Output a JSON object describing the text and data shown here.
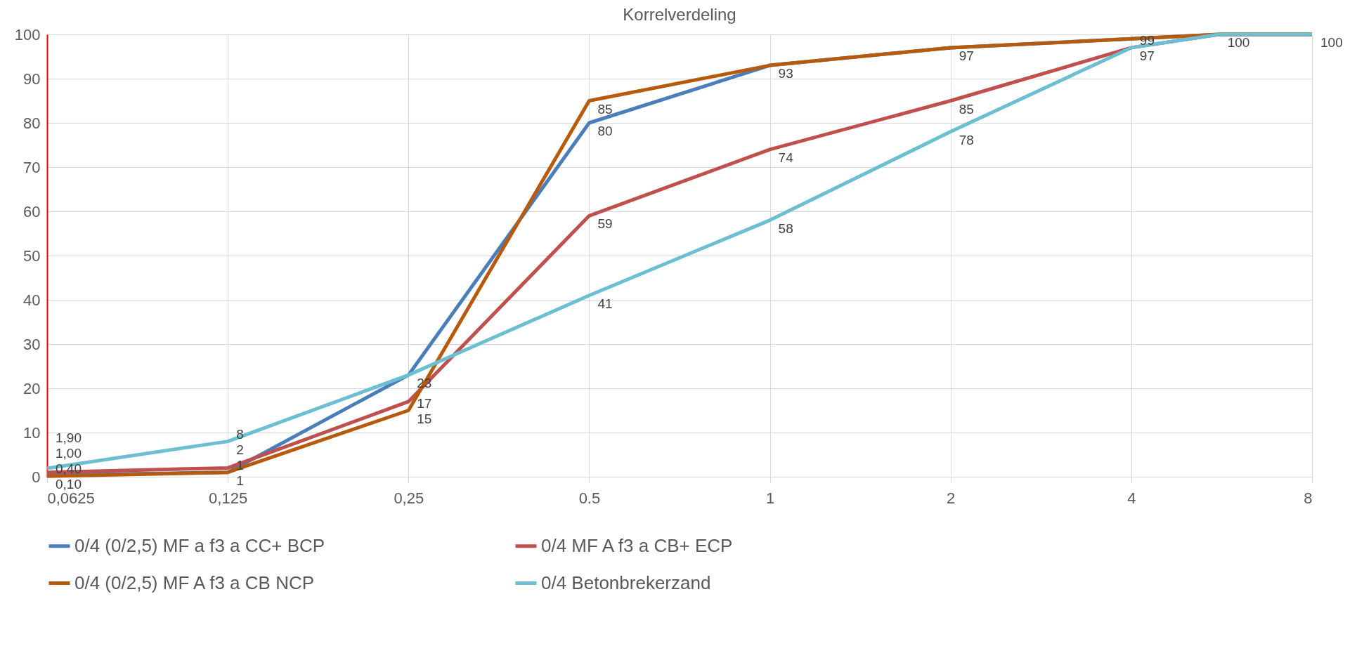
{
  "chart_data": {
    "type": "line",
    "title": "Korrelverdeling",
    "x": [
      0.0625,
      0.125,
      0.25,
      0.5,
      1,
      2,
      4,
      5.6,
      8
    ],
    "xlim": [
      0.0625,
      8
    ],
    "log": "x",
    "xticks": [
      {
        "value": 0.0625,
        "label": "0,0625"
      },
      {
        "value": 0.125,
        "label": "0,125"
      },
      {
        "value": 0.25,
        "label": "0,25"
      },
      0.5,
      1,
      2,
      4,
      8
    ],
    "ylim": [
      0,
      100
    ],
    "yticks": [
      0,
      10,
      20,
      30,
      40,
      50,
      60,
      70,
      80,
      90,
      100
    ],
    "grid": true,
    "legend": "bottom",
    "marker": "none",
    "line_style": "solid",
    "series": [
      {
        "name": "0/4 (0/2,5) MF a f3 a CC+ BCP",
        "color": "#4a7ebb",
        "values": [
          0.4,
          1,
          23,
          80,
          93,
          97,
          99,
          100,
          100
        ],
        "value_labels": [
          "0,40",
          "1",
          null,
          "80",
          null,
          null,
          null,
          null,
          null
        ]
      },
      {
        "name": "0/4 MF A f3 a CB+ ECP",
        "color": "#c0504d",
        "values": [
          1,
          2,
          17,
          59,
          74,
          85,
          97,
          100,
          100
        ],
        "value_labels": [
          "1,00",
          "2",
          "17",
          "59",
          "74",
          "85",
          null,
          null,
          null
        ]
      },
      {
        "name": "0/4 (0/2,5) MF A f3 a CB NCP",
        "color": "#b85a0d",
        "values": [
          0.1,
          1,
          15,
          85,
          93,
          97,
          99,
          100,
          100
        ],
        "value_labels": [
          "0,10",
          "1",
          "15",
          "85",
          "93",
          "97",
          "99",
          null,
          null
        ]
      },
      {
        "name": "0/4 Betonbrekerzand",
        "color": "#6cbfd3",
        "values": [
          1.9,
          8,
          23,
          41,
          58,
          78,
          97,
          100,
          100
        ],
        "value_labels": [
          "1,90",
          "8",
          "23",
          "41",
          "58",
          "78",
          "97",
          "100",
          "100"
        ]
      }
    ]
  }
}
